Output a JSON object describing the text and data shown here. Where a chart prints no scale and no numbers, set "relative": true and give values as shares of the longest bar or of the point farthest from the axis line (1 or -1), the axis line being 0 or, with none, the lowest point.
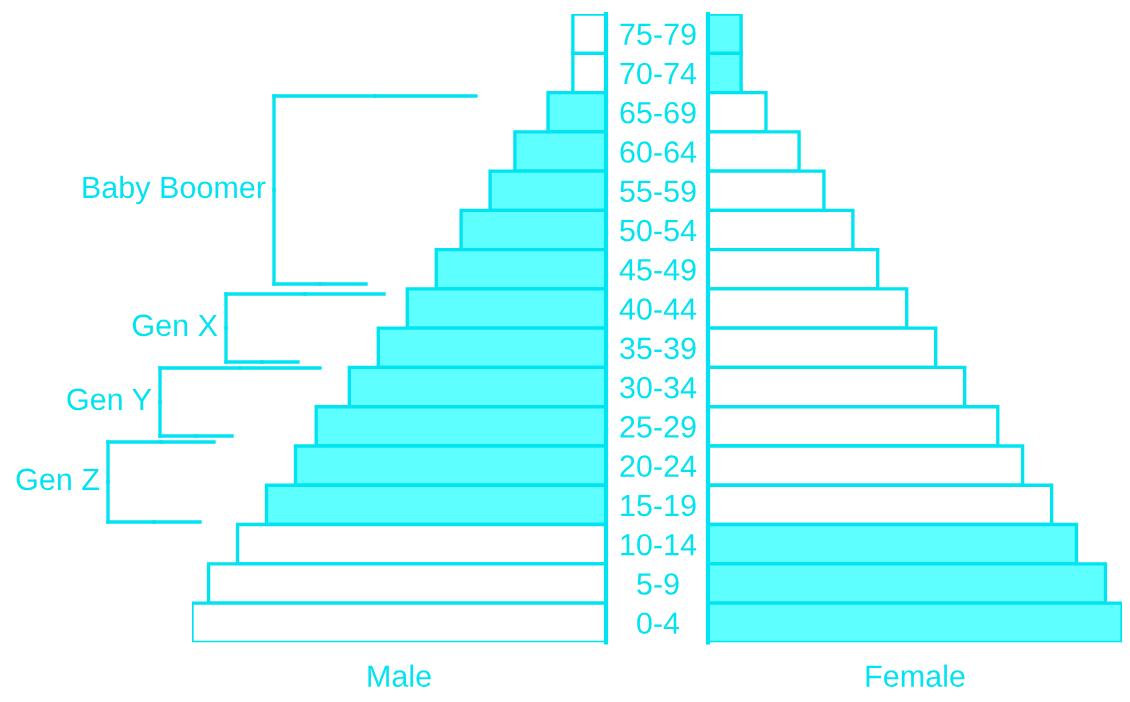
{
  "chart_data": [
    {
      "type": "bar",
      "orientation": "horizontal",
      "relative": true,
      "xlabel": "Male",
      "categories": [
        null,
        null,
        null,
        null,
        null,
        null,
        null,
        null,
        null,
        null,
        null,
        null,
        null,
        null,
        null,
        null
      ],
      "values": [
        -0.08,
        -0.08,
        -0.14,
        -0.22,
        -0.28,
        -0.35,
        -0.41,
        -0.48,
        -0.55,
        -0.62,
        -0.7,
        -0.75,
        -0.82,
        -0.89,
        -0.96,
        -1
      ],
      "colors": [
        "#ffffff",
        "#ffffff",
        "#5effff",
        "#5effff",
        "#5effff",
        "#5effff",
        "#5effff",
        "#5effff",
        "#5effff",
        "#5effff",
        "#5effff",
        "#5effff",
        "#5effff",
        "#ffffff",
        "#ffffff",
        "#ffffff"
      ],
      "annotations": [
        "Baby Boomer",
        "Gen X",
        "Gen Y",
        "Gen Z"
      ]
    },
    {
      "type": "bar",
      "orientation": "horizontal",
      "relative": true,
      "xlabel": "Female",
      "tick_labels": "y",
      "categories": [
        "75-79",
        "70-74",
        "65-69",
        "60-64",
        "55-59",
        "50-54",
        "45-49",
        "40-44",
        "35-39",
        "30-34",
        "25-29",
        "20-24",
        "15-19",
        "10-14",
        "5-9",
        "0-4"
      ],
      "values": [
        0.08,
        0.08,
        0.14,
        0.22,
        0.28,
        0.35,
        0.41,
        0.48,
        0.55,
        0.62,
        0.7,
        0.76,
        0.83,
        0.89,
        0.96,
        1
      ],
      "colors": [
        "#5effff",
        "#5effff",
        "#ffffff",
        "#ffffff",
        "#ffffff",
        "#ffffff",
        "#ffffff",
        "#ffffff",
        "#ffffff",
        "#ffffff",
        "#ffffff",
        "#ffffff",
        "#ffffff",
        "#5effff",
        "#5effff",
        "#5effff"
      ]
    }
  ]
}
